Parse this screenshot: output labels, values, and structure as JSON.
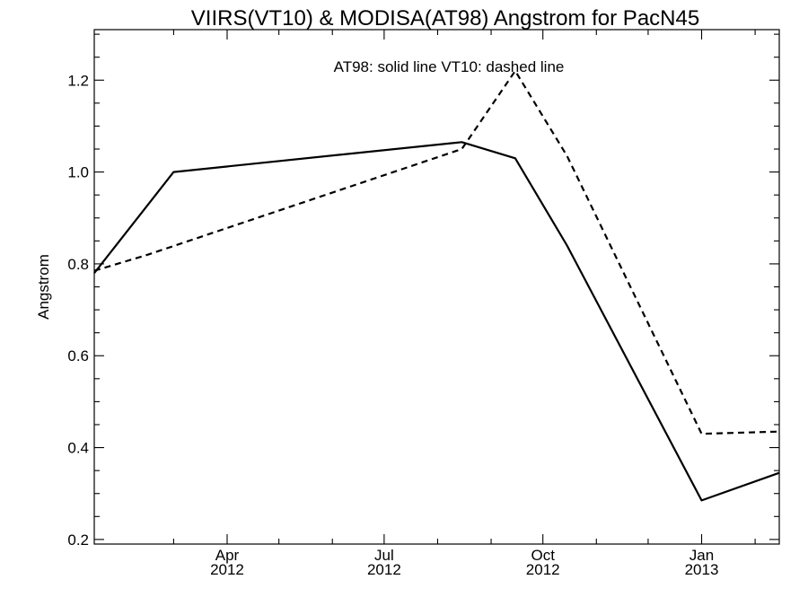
{
  "chart_data": {
    "type": "line",
    "title": "VIIRS(VT10) & MODISA(AT98)  Angstrom for PacN45",
    "annotation": "AT98: solid line   VT10: dashed line",
    "xlabel": "",
    "ylabel": "Angstrom",
    "xlim": [
      "2012-01-15",
      "2013-02-15"
    ],
    "ylim": [
      0.19,
      1.31
    ],
    "grid": false,
    "x_ticks": [
      {
        "date": "2012-04-01",
        "month": "Apr",
        "year": "2012"
      },
      {
        "date": "2012-07-01",
        "month": "Jul",
        "year": "2012"
      },
      {
        "date": "2012-10-01",
        "month": "Oct",
        "year": "2012"
      },
      {
        "date": "2013-01-01",
        "month": "Jan",
        "year": "2013"
      }
    ],
    "x_minor_ticks": [
      "2012-03-01",
      "2012-05-01",
      "2012-06-01",
      "2012-08-01",
      "2012-09-01",
      "2012-11-01",
      "2012-12-01",
      "2013-02-01"
    ],
    "y_ticks": [
      "0.2",
      "0.4",
      "0.6",
      "0.8",
      "1.0",
      "1.2"
    ],
    "y_minor_step": 0.05,
    "series": [
      {
        "style": "solid",
        "points": [
          {
            "x": "2012-01-15",
            "y": 0.78
          },
          {
            "x": "2012-03-01",
            "y": 1.0
          },
          {
            "x": "2012-08-15",
            "y": 1.065
          },
          {
            "x": "2012-09-15",
            "y": 1.03
          },
          {
            "x": "2012-10-15",
            "y": 0.84
          },
          {
            "x": "2013-01-01",
            "y": 0.285
          },
          {
            "x": "2013-02-15",
            "y": 0.345
          }
        ]
      },
      {
        "style": "dashed",
        "points": [
          {
            "x": "2012-01-15",
            "y": 0.785
          },
          {
            "x": "2012-02-15",
            "y": 0.82
          },
          {
            "x": "2012-08-15",
            "y": 1.05
          },
          {
            "x": "2012-09-15",
            "y": 1.22
          },
          {
            "x": "2012-10-15",
            "y": 1.035
          },
          {
            "x": "2013-01-01",
            "y": 0.43
          },
          {
            "x": "2013-02-15",
            "y": 0.435
          }
        ]
      }
    ]
  }
}
